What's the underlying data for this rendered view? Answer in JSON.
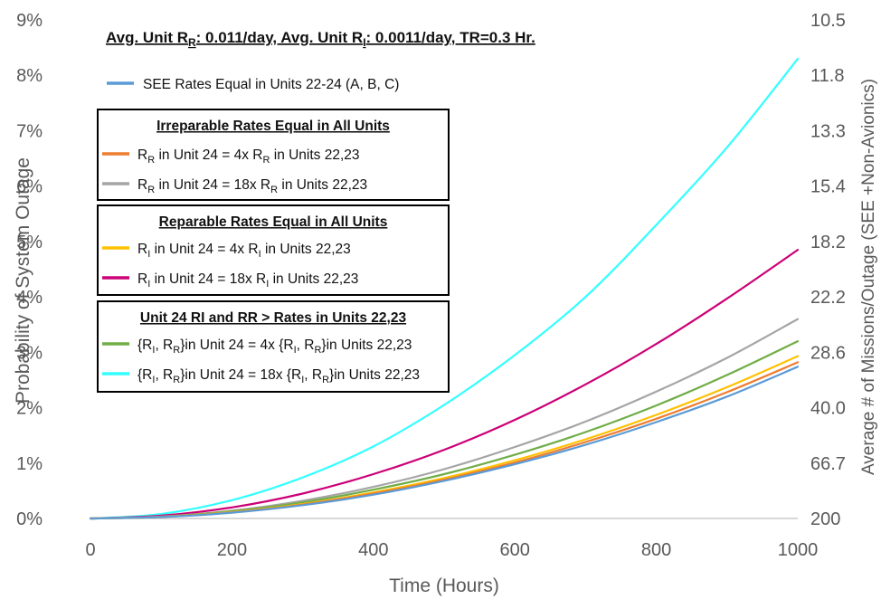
{
  "chart_data": {
    "type": "line",
    "title_parts": {
      "pre": "Avg. Unit R",
      "sub1": "R",
      "mid": ": 0.011/day, Avg. Unit R",
      "sub2": "I",
      "post": ": 0.0011/day, TR=0.3 Hr."
    },
    "xlabel": "Time (Hours)",
    "ylabel": "Probability of System Outage",
    "y2label": "Average # of Missions/Outage (SEE +Non-Avionics)",
    "xlim": [
      0,
      1000
    ],
    "ylim": [
      0,
      9
    ],
    "x_ticks": [
      "0",
      "200",
      "400",
      "600",
      "800",
      "1000"
    ],
    "y_ticks": [
      "0%",
      "1%",
      "2%",
      "3%",
      "4%",
      "5%",
      "6%",
      "7%",
      "8%",
      "9%"
    ],
    "y2_ticks": [
      "200",
      "66.7",
      "40.0",
      "28.6",
      "22.2",
      "18.2",
      "15.4",
      "13.3",
      "11.8",
      "10.5"
    ],
    "grid": false,
    "legend_groups": [
      {
        "heading": "",
        "items": [
          {
            "key": "see",
            "color": "#5b9bd5",
            "parts": [
              [
                "SEE Rates Equal in Units 22-24 (A, B, C)",
                ""
              ]
            ]
          }
        ]
      },
      {
        "heading": "Irreparable Rates Equal in All Units",
        "items": [
          {
            "key": "rr4",
            "color": "#ed7d31",
            "parts": [
              [
                "R",
                ""
              ],
              [
                "R",
                "sub"
              ],
              [
                " in Unit 24 = 4x R",
                ""
              ],
              [
                "R",
                "sub"
              ],
              [
                " in Units 22,23",
                ""
              ]
            ]
          },
          {
            "key": "rr18",
            "color": "#a5a5a5",
            "parts": [
              [
                "R",
                ""
              ],
              [
                "R",
                "sub"
              ],
              [
                " in Unit 24 = 18x R",
                ""
              ],
              [
                "R",
                "sub"
              ],
              [
                " in Units 22,23",
                ""
              ]
            ]
          }
        ]
      },
      {
        "heading": "Reparable Rates Equal in All Units",
        "items": [
          {
            "key": "ri4",
            "color": "#ffc000",
            "parts": [
              [
                "R",
                ""
              ],
              [
                "I",
                "sub"
              ],
              [
                " in Unit 24 = 4x R",
                ""
              ],
              [
                "I",
                "sub"
              ],
              [
                " in Units 22,23",
                ""
              ]
            ]
          },
          {
            "key": "ri18",
            "color": "#cc0077",
            "parts": [
              [
                "R",
                ""
              ],
              [
                "I",
                "sub"
              ],
              [
                " in Unit 24 = 18x R",
                ""
              ],
              [
                "I",
                "sub"
              ],
              [
                " in Units 22,23",
                ""
              ]
            ]
          }
        ]
      },
      {
        "heading": "Unit 24 RI and RR > Rates in Units 22,23",
        "items": [
          {
            "key": "both4",
            "color": "#70ad47",
            "parts": [
              [
                "{R",
                ""
              ],
              [
                "I",
                "sub"
              ],
              [
                ", R",
                ""
              ],
              [
                "R",
                "sub"
              ],
              [
                "}in Unit 24 = 4x {R",
                ""
              ],
              [
                "I",
                "sub"
              ],
              [
                ", R",
                ""
              ],
              [
                "R",
                "sub"
              ],
              [
                "}in Units 22,23",
                ""
              ]
            ]
          },
          {
            "key": "both18",
            "color": "#33ffff",
            "parts": [
              [
                "{R",
                ""
              ],
              [
                "I",
                "sub"
              ],
              [
                ", R",
                ""
              ],
              [
                "R",
                "sub"
              ],
              [
                "}in Unit 24 = 18x {R",
                ""
              ],
              [
                "I",
                "sub"
              ],
              [
                ", R",
                ""
              ],
              [
                "R",
                "sub"
              ],
              [
                "}in Units 22,23",
                ""
              ]
            ]
          }
        ]
      }
    ],
    "x": [
      0,
      100,
      200,
      300,
      400,
      500,
      600,
      700,
      800,
      900,
      1000
    ],
    "series": [
      {
        "key": "both18",
        "color": "#33ffff",
        "values": [
          0,
          0.08,
          0.33,
          0.74,
          1.3,
          2.05,
          2.95,
          4.0,
          5.3,
          6.7,
          8.3
        ]
      },
      {
        "key": "ri18",
        "color": "#cc0077",
        "values": [
          0,
          0.05,
          0.2,
          0.45,
          0.8,
          1.24,
          1.78,
          2.42,
          3.15,
          3.97,
          4.85
        ]
      },
      {
        "key": "rr18",
        "color": "#a5a5a5",
        "values": [
          0,
          0.035,
          0.14,
          0.32,
          0.57,
          0.89,
          1.29,
          1.75,
          2.29,
          2.9,
          3.6
        ]
      },
      {
        "key": "both4",
        "color": "#70ad47",
        "values": [
          0,
          0.03,
          0.13,
          0.29,
          0.52,
          0.8,
          1.15,
          1.56,
          2.04,
          2.59,
          3.2
        ]
      },
      {
        "key": "ri4",
        "color": "#ffc000",
        "values": [
          0,
          0.028,
          0.115,
          0.26,
          0.47,
          0.73,
          1.05,
          1.43,
          1.87,
          2.37,
          2.93
        ]
      },
      {
        "key": "rr4",
        "color": "#ed7d31",
        "values": [
          0,
          0.027,
          0.11,
          0.25,
          0.45,
          0.7,
          1.01,
          1.38,
          1.8,
          2.28,
          2.82
        ]
      },
      {
        "key": "see",
        "color": "#5b9bd5",
        "values": [
          0,
          0.026,
          0.105,
          0.24,
          0.43,
          0.68,
          0.98,
          1.33,
          1.74,
          2.2,
          2.74
        ]
      }
    ]
  }
}
